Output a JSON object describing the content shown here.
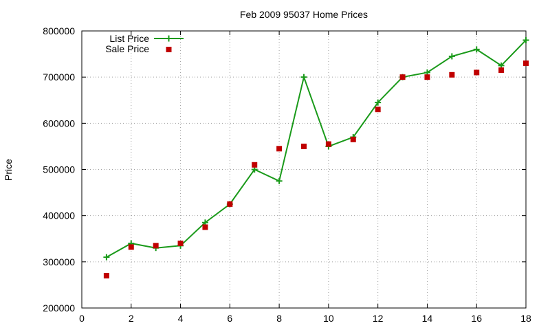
{
  "chart_data": {
    "type": "line",
    "title": "Feb 2009 95037 Home Prices",
    "xlabel": "",
    "ylabel": "Price",
    "xlim": [
      0,
      18
    ],
    "ylim": [
      200000,
      800000
    ],
    "x_ticks": [
      0,
      2,
      4,
      6,
      8,
      10,
      12,
      14,
      16,
      18
    ],
    "y_ticks": [
      200000,
      300000,
      400000,
      500000,
      600000,
      700000,
      800000
    ],
    "grid": true,
    "legend_position": "top-left",
    "x": [
      1,
      2,
      3,
      4,
      5,
      6,
      7,
      8,
      9,
      10,
      11,
      12,
      13,
      14,
      15,
      16,
      17,
      18
    ],
    "series": [
      {
        "name": "List Price",
        "style": "line-with-plus-markers",
        "color": "#1a9a1a",
        "values": [
          310000,
          340000,
          330000,
          335000,
          385000,
          425000,
          500000,
          475000,
          700000,
          550000,
          570000,
          645000,
          700000,
          710000,
          745000,
          760000,
          725000,
          780000
        ]
      },
      {
        "name": "Sale Price",
        "style": "square-markers",
        "color": "#c00000",
        "values": [
          270000,
          332000,
          335000,
          340000,
          375000,
          425000,
          510000,
          545000,
          550000,
          555000,
          565000,
          630000,
          700000,
          700000,
          705000,
          710000,
          715000,
          730000
        ]
      }
    ]
  }
}
